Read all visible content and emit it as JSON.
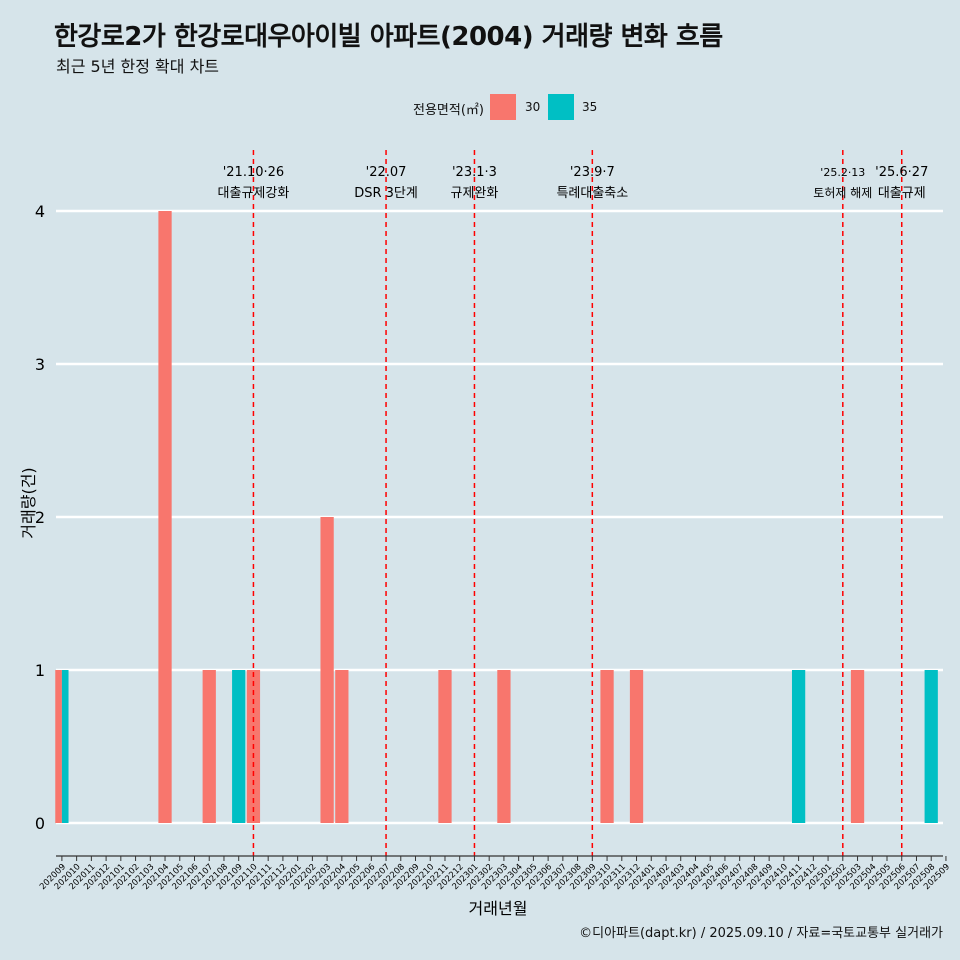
{
  "title": "한강로2가 한강로대우아이빌 아파트(2004) 거래량 변화 흐름",
  "subtitle": "최근 5년 한정 확대 차트",
  "legend": {
    "title": "전용면적(㎡)",
    "items": [
      {
        "label": "30",
        "color": "#f8766d"
      },
      {
        "label": "35",
        "color": "#00bfc4"
      }
    ]
  },
  "caption": "©디아파트(dapt.kr) / 2025.09.10 / 자료=국토교통부 실거래가",
  "chart_data": {
    "type": "bar",
    "xlabel": "거래년월",
    "ylabel": "거래량(건)",
    "ylim": [
      0,
      4
    ],
    "yticks": [
      0,
      1,
      2,
      3,
      4
    ],
    "grid": true,
    "legend_position": "top",
    "categories": [
      "202009",
      "202010",
      "202011",
      "202012",
      "202101",
      "202102",
      "202103",
      "202104",
      "202105",
      "202106",
      "202107",
      "202108",
      "202109",
      "202110",
      "202111",
      "202112",
      "202201",
      "202202",
      "202203",
      "202204",
      "202205",
      "202206",
      "202207",
      "202208",
      "202209",
      "202210",
      "202211",
      "202212",
      "202301",
      "202302",
      "202303",
      "202304",
      "202305",
      "202306",
      "202307",
      "202308",
      "202309",
      "202310",
      "202311",
      "202312",
      "202401",
      "202402",
      "202403",
      "202404",
      "202405",
      "202406",
      "202407",
      "202408",
      "202409",
      "202410",
      "202411",
      "202412",
      "202501",
      "202502",
      "202503",
      "202504",
      "202505",
      "202506",
      "202507",
      "202508",
      "202509"
    ],
    "series": [
      {
        "name": "30",
        "color": "#f8766d",
        "points": [
          {
            "x": "202009",
            "y": 1
          },
          {
            "x": "202104",
            "y": 4
          },
          {
            "x": "202107",
            "y": 1
          },
          {
            "x": "202110",
            "y": 1
          },
          {
            "x": "202203",
            "y": 2
          },
          {
            "x": "202204",
            "y": 1
          },
          {
            "x": "202211",
            "y": 1
          },
          {
            "x": "202303",
            "y": 1
          },
          {
            "x": "202310",
            "y": 1
          },
          {
            "x": "202312",
            "y": 1
          },
          {
            "x": "202503",
            "y": 1
          }
        ]
      },
      {
        "name": "35",
        "color": "#00bfc4",
        "points": [
          {
            "x": "202009",
            "y": 1
          },
          {
            "x": "202109",
            "y": 1
          },
          {
            "x": "202411",
            "y": 1
          },
          {
            "x": "202508",
            "y": 1
          }
        ]
      }
    ],
    "events": [
      {
        "date": "'21.10·26",
        "label": "대출규제강화",
        "x": "202110"
      },
      {
        "date": "'22.07",
        "label": "DSR 3단계",
        "x": "202207"
      },
      {
        "date": "'23.1·3",
        "label": "규제완화",
        "x": "202301"
      },
      {
        "date": "'23.9·7",
        "label": "특례대출축소",
        "x": "202309"
      },
      {
        "date": "'25.2·13",
        "label": "토허제 해제",
        "x": "202502"
      },
      {
        "date": "'25.6·27",
        "label": "대출규제",
        "x": "202506"
      }
    ],
    "event_line_color": "#ff0000"
  }
}
